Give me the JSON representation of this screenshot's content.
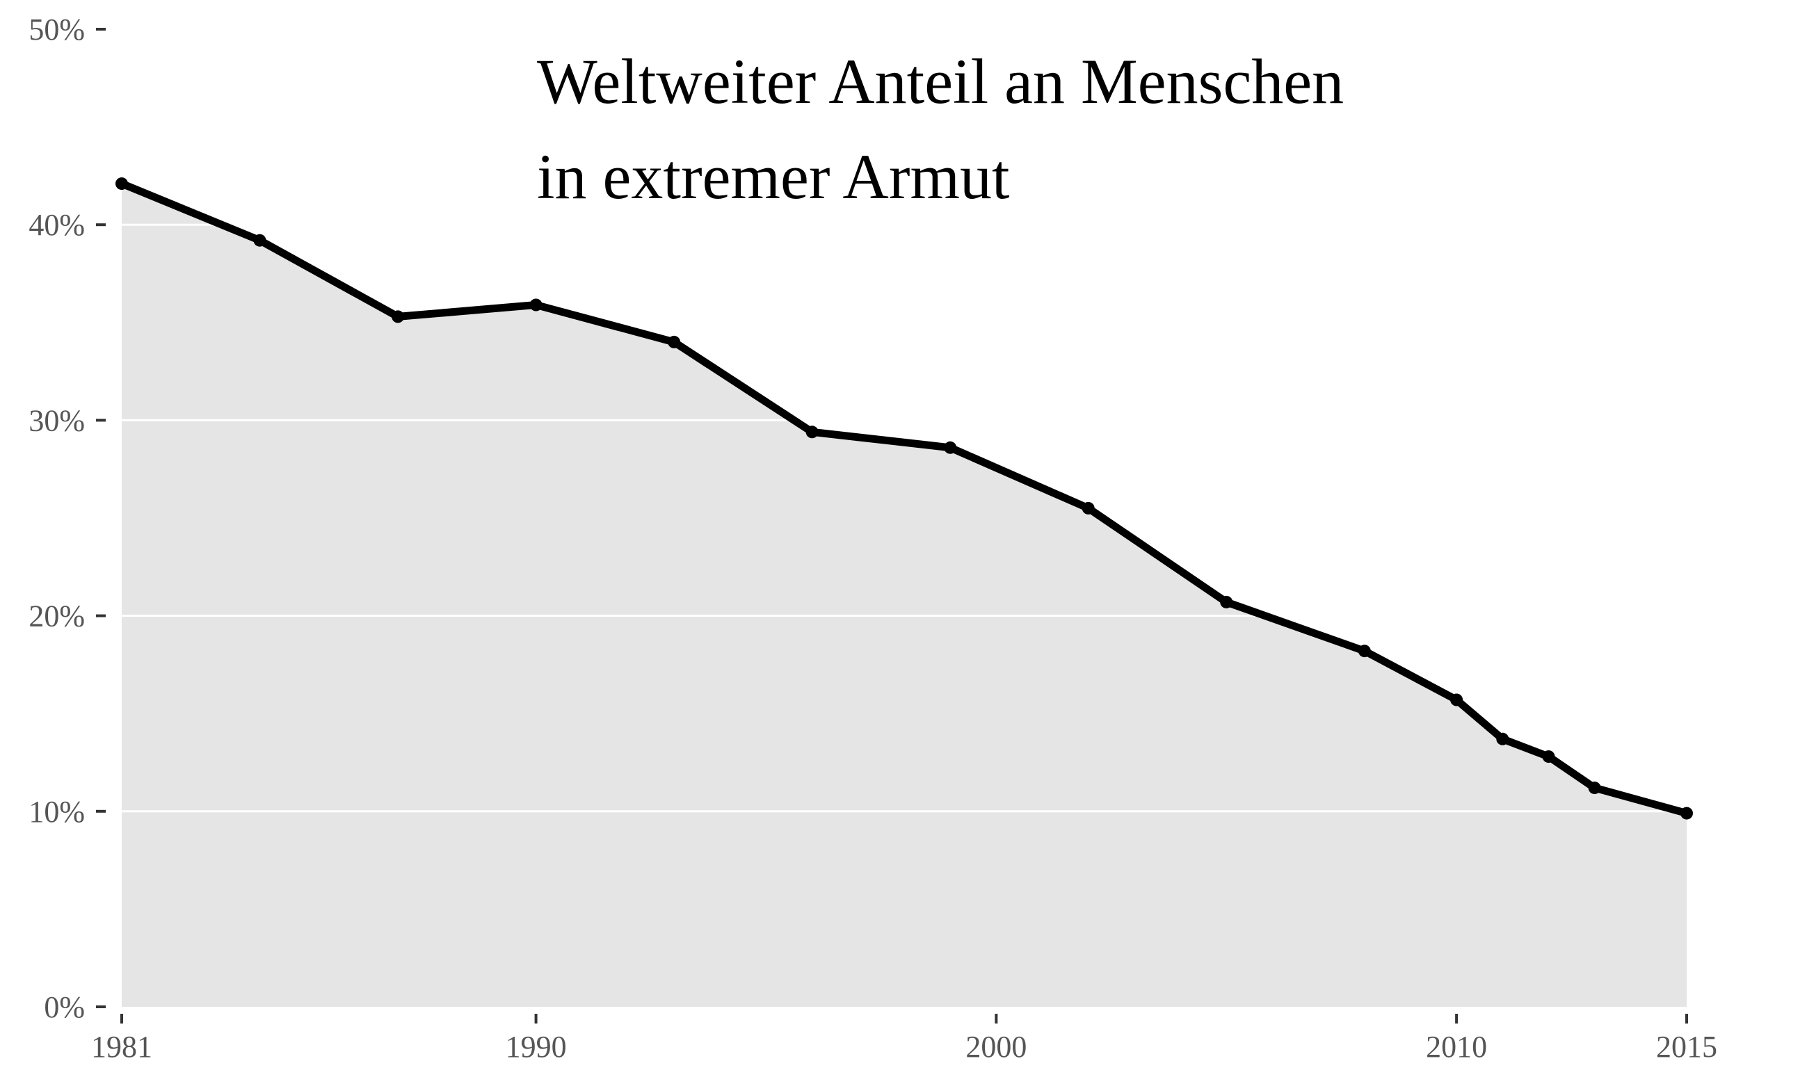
{
  "chart_data": {
    "type": "area",
    "title_lines": [
      "Weltweiter Anteil an Menschen",
      "in extremer Armut"
    ],
    "xlabel": "",
    "ylabel": "",
    "x": [
      1981,
      1984,
      1987,
      1990,
      1993,
      1996,
      1999,
      2002,
      2005,
      2008,
      2010,
      2011,
      2012,
      2013,
      2015
    ],
    "series": [
      {
        "values": [
          42.1,
          39.2,
          35.3,
          35.9,
          34.0,
          29.4,
          28.6,
          25.5,
          20.7,
          18.2,
          15.7,
          13.7,
          12.8,
          11.2,
          9.9
        ]
      }
    ],
    "xlim": [
      1981,
      2015
    ],
    "ylim": [
      0,
      50
    ],
    "x_ticks": [
      1981,
      1990,
      2000,
      2010,
      2015
    ],
    "x_tick_labels": [
      "1981",
      "1990",
      "2000",
      "2010",
      "2015"
    ],
    "y_ticks": [
      0,
      10,
      20,
      30,
      40,
      50
    ],
    "y_tick_labels": [
      "0%",
      "10%",
      "20%",
      "30%",
      "40%",
      "50%"
    ],
    "grid": "horizontal",
    "colors": {
      "area": "#e5e5e5",
      "line": "#000000",
      "grid": "#ffffff",
      "tick_text": "#555555"
    }
  }
}
